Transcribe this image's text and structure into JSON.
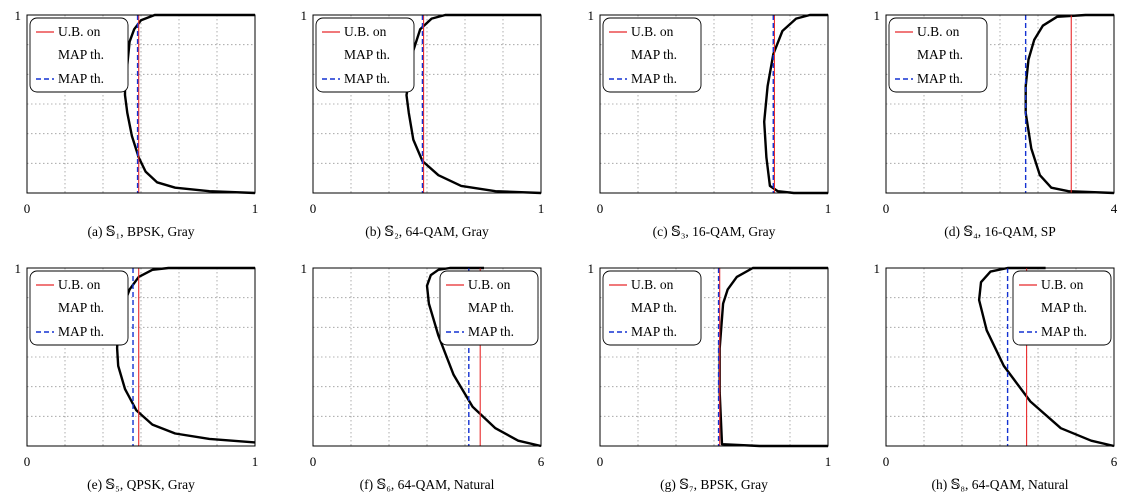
{
  "chart_data": [
    {
      "type": "line",
      "caption": "(a) 𝕊₁, BPSK, Gray",
      "xlim": [
        0,
        1
      ],
      "ylim": [
        0,
        1
      ],
      "x_ticks": [
        "0",
        "1"
      ],
      "y_ticks": [
        "1"
      ],
      "grid": true,
      "legend_position": "top-left",
      "series": [
        {
          "name": "",
          "style": "black-curve",
          "points": [
            [
              1.0,
              0.0
            ],
            [
              0.8,
              0.01
            ],
            [
              0.65,
              0.03
            ],
            [
              0.57,
              0.06
            ],
            [
              0.52,
              0.12
            ],
            [
              0.49,
              0.2
            ],
            [
              0.46,
              0.32
            ],
            [
              0.44,
              0.45
            ],
            [
              0.43,
              0.55
            ],
            [
              0.43,
              0.6
            ],
            [
              0.44,
              0.72
            ],
            [
              0.45,
              0.85
            ],
            [
              0.47,
              0.92
            ],
            [
              0.5,
              0.97
            ],
            [
              0.56,
              1.0
            ],
            [
              1.0,
              1.0
            ]
          ]
        },
        {
          "name": "U.B. on MAP th.",
          "style": "red-solid",
          "x": 0.49
        },
        {
          "name": "MAP th.",
          "style": "blue-dashed",
          "x": 0.485
        }
      ]
    },
    {
      "type": "line",
      "caption": "(b) 𝕊₂, 64-QAM, Gray",
      "xlim": [
        0,
        1
      ],
      "ylim": [
        0,
        1
      ],
      "x_ticks": [
        "0",
        "1"
      ],
      "y_ticks": [
        "1"
      ],
      "grid": true,
      "legend_position": "top-left",
      "series": [
        {
          "name": "",
          "style": "black-curve",
          "points": [
            [
              1.0,
              0.0
            ],
            [
              0.8,
              0.01
            ],
            [
              0.65,
              0.04
            ],
            [
              0.55,
              0.1
            ],
            [
              0.48,
              0.18
            ],
            [
              0.44,
              0.3
            ],
            [
              0.42,
              0.45
            ],
            [
              0.41,
              0.55
            ],
            [
              0.42,
              0.62
            ],
            [
              0.44,
              0.8
            ],
            [
              0.47,
              0.92
            ],
            [
              0.52,
              0.98
            ],
            [
              0.58,
              1.0
            ],
            [
              1.0,
              1.0
            ]
          ]
        },
        {
          "name": "U.B. on MAP th.",
          "style": "red-solid",
          "x": 0.485
        },
        {
          "name": "MAP th.",
          "style": "blue-dashed",
          "x": 0.48
        }
      ]
    },
    {
      "type": "line",
      "caption": "(c) 𝕊₃, 16-QAM, Gray",
      "xlim": [
        0,
        1
      ],
      "ylim": [
        0,
        1
      ],
      "x_ticks": [
        "0",
        "1"
      ],
      "y_ticks": [
        "1"
      ],
      "grid": true,
      "legend_position": "top-left",
      "series": [
        {
          "name": "",
          "style": "black-curve",
          "points": [
            [
              1.0,
              0.0
            ],
            [
              0.85,
              0.0
            ],
            [
              0.78,
              0.01
            ],
            [
              0.745,
              0.04
            ],
            [
              0.73,
              0.2
            ],
            [
              0.72,
              0.4
            ],
            [
              0.735,
              0.6
            ],
            [
              0.76,
              0.78
            ],
            [
              0.8,
              0.91
            ],
            [
              0.86,
              0.98
            ],
            [
              0.92,
              1.0
            ],
            [
              1.0,
              1.0
            ]
          ]
        },
        {
          "name": "U.B. on MAP th.",
          "style": "red-solid",
          "x": 0.765
        },
        {
          "name": "MAP th.",
          "style": "blue-dashed",
          "x": 0.76
        }
      ]
    },
    {
      "type": "line",
      "caption": "(d) 𝕊₄, 16-QAM, SP",
      "xlim": [
        0,
        4
      ],
      "ylim": [
        0,
        1
      ],
      "x_ticks": [
        "0",
        "4"
      ],
      "y_ticks": [
        "1"
      ],
      "grid": true,
      "legend_position": "top-left",
      "series": [
        {
          "name": "",
          "style": "black-curve",
          "points": [
            [
              4.0,
              0.0
            ],
            [
              3.2,
              0.01
            ],
            [
              2.9,
              0.03
            ],
            [
              2.7,
              0.1
            ],
            [
              2.55,
              0.25
            ],
            [
              2.45,
              0.45
            ],
            [
              2.45,
              0.6
            ],
            [
              2.5,
              0.75
            ],
            [
              2.6,
              0.86
            ],
            [
              2.75,
              0.94
            ],
            [
              3.0,
              0.99
            ],
            [
              3.5,
              1.0
            ],
            [
              4.0,
              1.0
            ]
          ]
        },
        {
          "name": "U.B. on MAP th.",
          "style": "red-solid",
          "x": 3.25
        },
        {
          "name": "MAP th.",
          "style": "blue-dashed",
          "x": 2.45
        }
      ]
    },
    {
      "type": "line",
      "caption": "(e) 𝕊₅, QPSK, Gray",
      "xlim": [
        0,
        1
      ],
      "ylim": [
        0,
        1
      ],
      "x_ticks": [
        "0",
        "1"
      ],
      "y_ticks": [
        "1"
      ],
      "grid": true,
      "legend_position": "top-left",
      "series": [
        {
          "name": "",
          "style": "black-curve",
          "points": [
            [
              1.0,
              0.02
            ],
            [
              0.8,
              0.04
            ],
            [
              0.65,
              0.07
            ],
            [
              0.55,
              0.12
            ],
            [
              0.48,
              0.2
            ],
            [
              0.43,
              0.32
            ],
            [
              0.4,
              0.45
            ],
            [
              0.395,
              0.55
            ],
            [
              0.4,
              0.65
            ],
            [
              0.42,
              0.78
            ],
            [
              0.45,
              0.88
            ],
            [
              0.49,
              0.95
            ],
            [
              0.55,
              0.99
            ],
            [
              0.62,
              1.0
            ],
            [
              1.0,
              1.0
            ]
          ]
        },
        {
          "name": "U.B. on MAP th.",
          "style": "red-solid",
          "x": 0.49
        },
        {
          "name": "MAP th.",
          "style": "blue-dashed",
          "x": 0.465
        }
      ]
    },
    {
      "type": "line",
      "caption": "(f) 𝕊₆, 64-QAM, Natural",
      "xlim": [
        0,
        6
      ],
      "ylim": [
        0,
        1
      ],
      "x_ticks": [
        "0",
        "6"
      ],
      "y_ticks": [
        "1"
      ],
      "grid": true,
      "legend_position": "top-right",
      "series": [
        {
          "name": "",
          "style": "black-curve",
          "points": [
            [
              6.0,
              0.0
            ],
            [
              5.4,
              0.03
            ],
            [
              4.8,
              0.1
            ],
            [
              4.2,
              0.22
            ],
            [
              3.7,
              0.4
            ],
            [
              3.3,
              0.62
            ],
            [
              3.05,
              0.8
            ],
            [
              3.0,
              0.9
            ],
            [
              3.1,
              0.96
            ],
            [
              3.3,
              0.99
            ],
            [
              3.6,
              1.0
            ],
            [
              4.5,
              1.0
            ]
          ]
        },
        {
          "name": "U.B. on MAP th.",
          "style": "red-solid",
          "x": 4.4
        },
        {
          "name": "MAP th.",
          "style": "blue-dashed",
          "x": 4.1
        }
      ]
    },
    {
      "type": "line",
      "caption": "(g) 𝕊₇, BPSK, Gray",
      "xlim": [
        0,
        1
      ],
      "ylim": [
        0,
        1
      ],
      "x_ticks": [
        "0",
        "1"
      ],
      "y_ticks": [
        "1"
      ],
      "grid": true,
      "legend_position": "top-left",
      "series": [
        {
          "name": "",
          "style": "black-curve",
          "points": [
            [
              1.0,
              0.0
            ],
            [
              0.7,
              0.0
            ],
            [
              0.535,
              0.01
            ],
            [
              0.525,
              0.3
            ],
            [
              0.525,
              0.55
            ],
            [
              0.54,
              0.8
            ],
            [
              0.56,
              0.88
            ],
            [
              0.6,
              0.95
            ],
            [
              0.67,
              1.0
            ],
            [
              1.0,
              1.0
            ]
          ]
        },
        {
          "name": "U.B. on MAP th.",
          "style": "red-solid",
          "x": 0.525
        },
        {
          "name": "MAP th.",
          "style": "blue-dashed",
          "x": 0.52
        }
      ]
    },
    {
      "type": "line",
      "caption": "(h) 𝕊₈, 64-QAM, Natural",
      "xlim": [
        0,
        6
      ],
      "ylim": [
        0,
        1
      ],
      "x_ticks": [
        "0",
        "6"
      ],
      "y_ticks": [
        "1"
      ],
      "grid": true,
      "legend_position": "top-right",
      "series": [
        {
          "name": "",
          "style": "black-curve",
          "points": [
            [
              6.0,
              0.0
            ],
            [
              5.4,
              0.03
            ],
            [
              4.6,
              0.1
            ],
            [
              3.8,
              0.25
            ],
            [
              3.1,
              0.45
            ],
            [
              2.65,
              0.65
            ],
            [
              2.45,
              0.82
            ],
            [
              2.5,
              0.92
            ],
            [
              2.75,
              0.98
            ],
            [
              3.2,
              1.0
            ],
            [
              4.2,
              1.0
            ]
          ]
        },
        {
          "name": "U.B. on MAP th.",
          "style": "red-solid",
          "x": 3.7
        },
        {
          "name": "MAP th.",
          "style": "blue-dashed",
          "x": 3.2
        }
      ]
    }
  ],
  "colors": {
    "curve": "#000000",
    "upper_bound": "#e8282a",
    "map_threshold": "#1432d2",
    "grid": "#9a9a9a"
  }
}
